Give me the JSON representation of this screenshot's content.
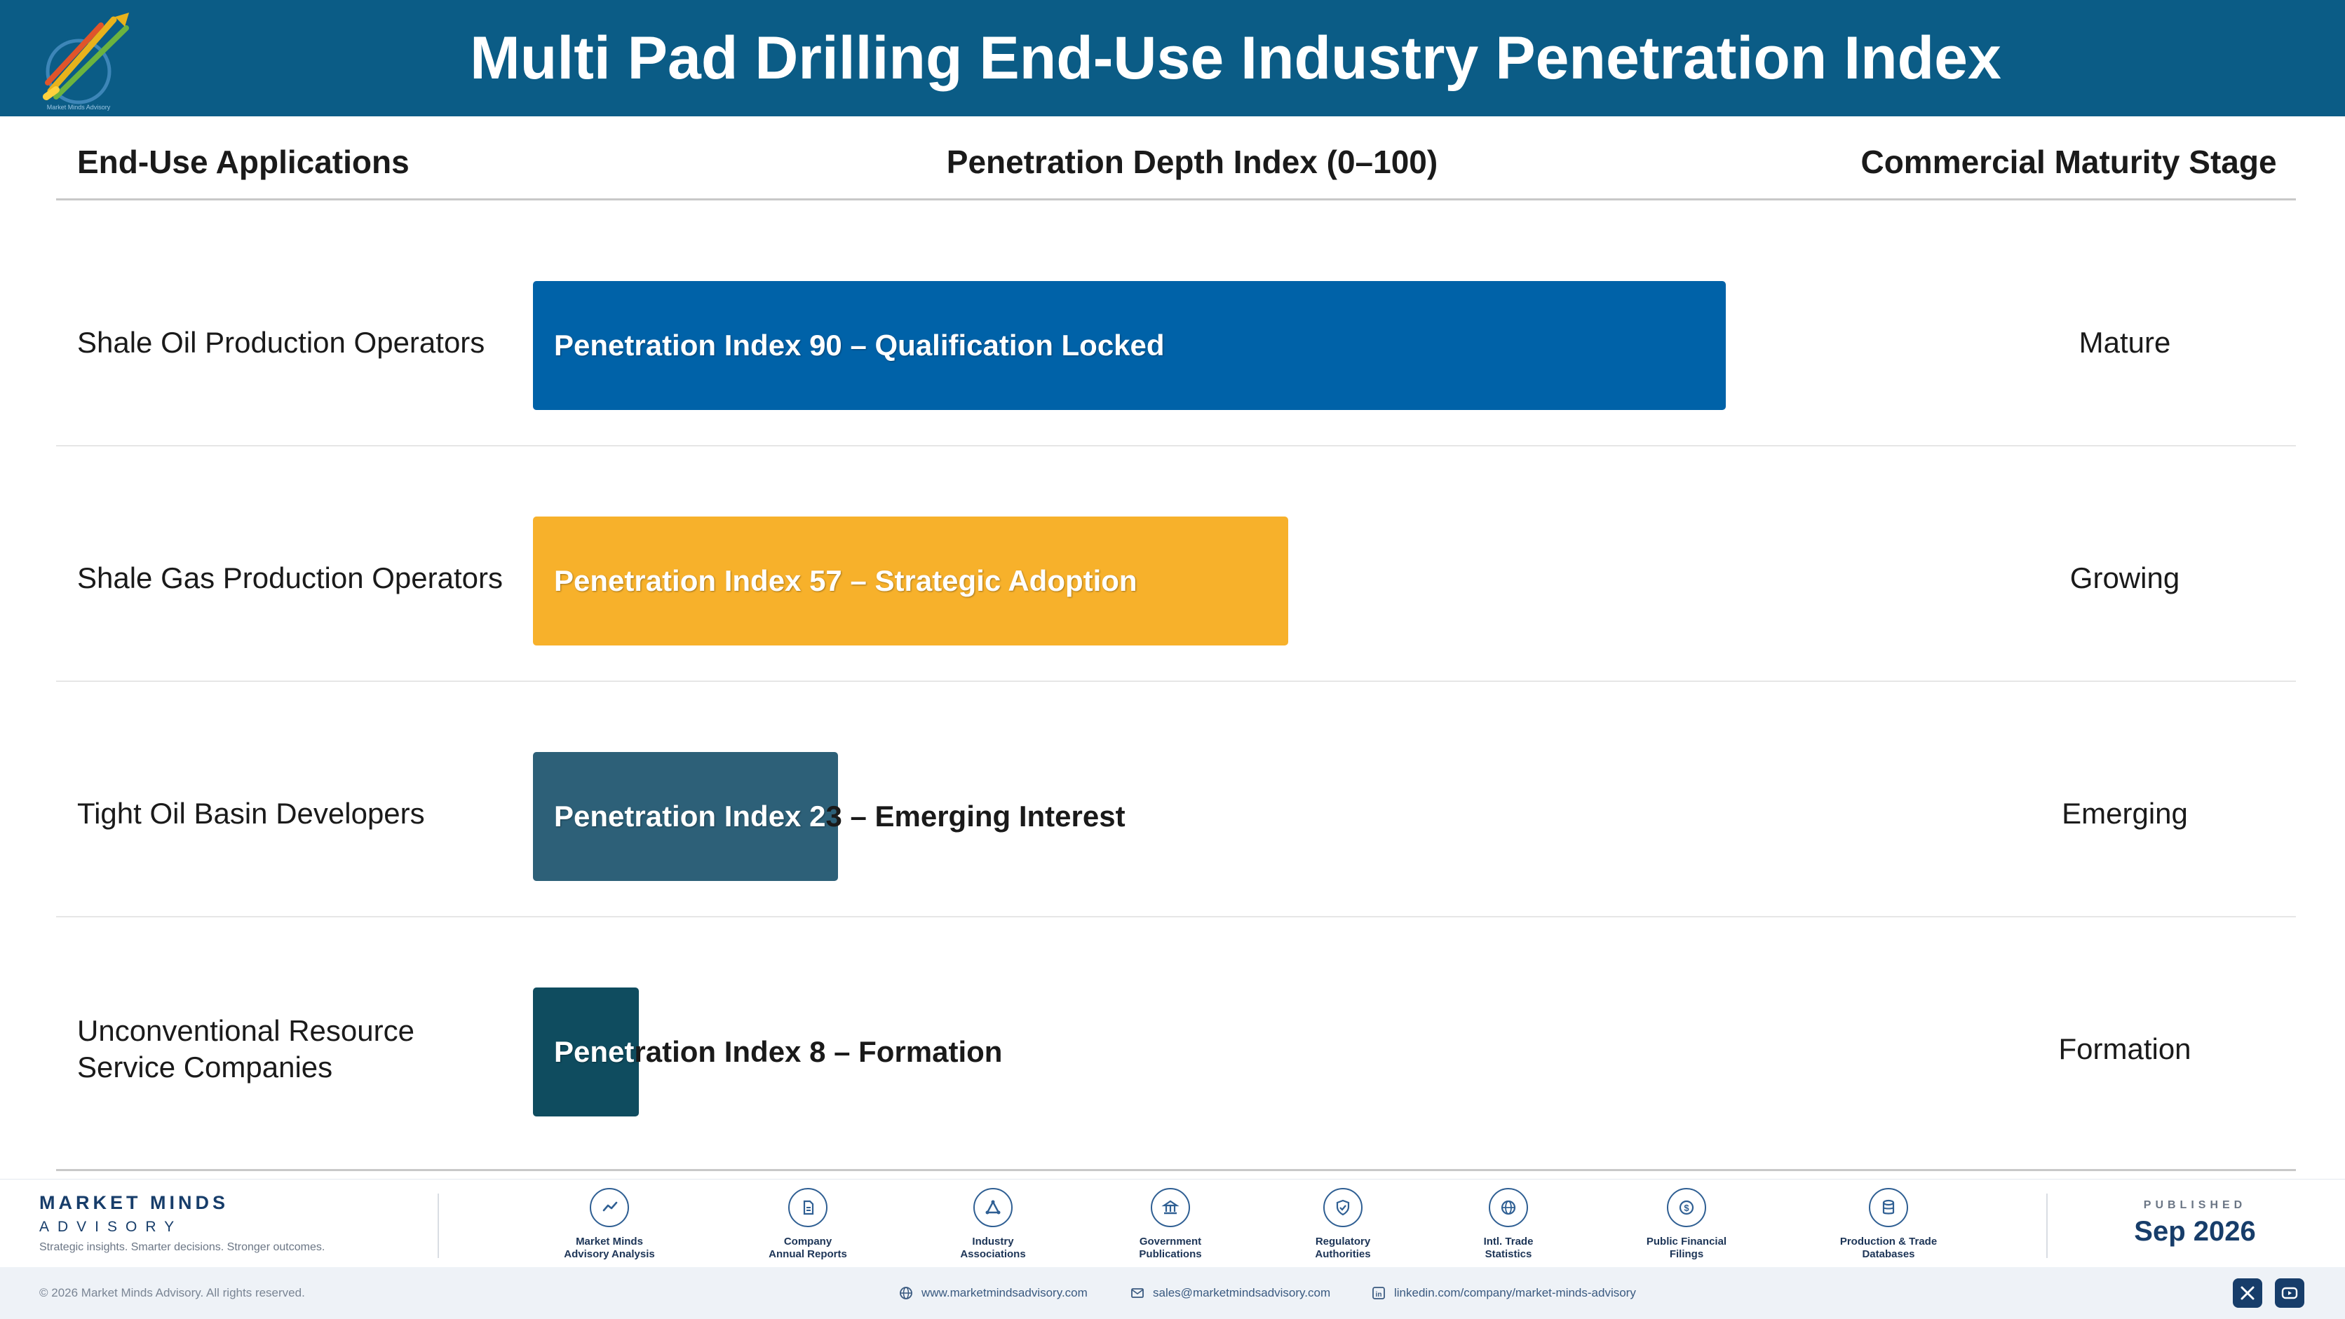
{
  "header": {
    "title": "Multi Pad Drilling End-Use Industry Penetration Index",
    "logo_text": "Market Minds Advisory"
  },
  "columns": {
    "applications": "End-Use Applications",
    "index": "Penetration Depth Index (0–100)",
    "stage": "Commercial Maturity Stage"
  },
  "colors": {
    "header_bg": "#0b5c86",
    "mature": "#0062a8",
    "growing": "#f7b12b",
    "emerging": "#2d6078",
    "formation": "#0f4c5f"
  },
  "chart_data": {
    "type": "bar",
    "orientation": "horizontal",
    "title": "Multi Pad Drilling End-Use Industry Penetration Index",
    "xlabel": "Penetration Depth Index (0–100)",
    "xlim": [
      0,
      100
    ],
    "categories": [
      "Shale Oil Production Operators",
      "Shale Gas Production Operators",
      "Tight Oil Basin Developers",
      "Unconventional Resource Service Companies"
    ],
    "values": [
      90,
      57,
      23,
      8
    ],
    "bar_labels": [
      "Penetration Index 90 – Qualification Locked",
      "Penetration Index 57 – Strategic Adoption",
      "Penetration Index 23 – Emerging Interest",
      "Penetration Index 8 – Formation"
    ],
    "stages": [
      "Mature",
      "Growing",
      "Emerging",
      "Formation"
    ],
    "bar_colors": [
      "#0062a8",
      "#f7b12b",
      "#2d6078",
      "#0f4c5f"
    ]
  },
  "footer": {
    "brand_name": "MARKET MINDS",
    "brand_sub": "ADVISORY",
    "tagline": "Strategic insights. Smarter decisions. Stronger outcomes.",
    "sources": [
      {
        "icon": "chart-line-icon",
        "line1": "Market Minds",
        "line2": "Advisory Analysis"
      },
      {
        "icon": "document-icon",
        "line1": "Company",
        "line2": "Annual Reports"
      },
      {
        "icon": "network-icon",
        "line1": "Industry",
        "line2": "Associations"
      },
      {
        "icon": "government-building-icon",
        "line1": "Government",
        "line2": "Publications"
      },
      {
        "icon": "shield-check-icon",
        "line1": "Regulatory",
        "line2": "Authorities"
      },
      {
        "icon": "globe-icon",
        "line1": "Intl. Trade",
        "line2": "Statistics"
      },
      {
        "icon": "dollar-coin-icon",
        "line1": "Public Financial",
        "line2": "Filings"
      },
      {
        "icon": "database-icon",
        "line1": "Production & Trade",
        "line2": "Databases"
      }
    ],
    "published_label": "PUBLISHED",
    "published_date": "Sep 2026",
    "copyright": "© 2026 Market Minds Advisory. All rights reserved.",
    "website": "www.marketmindsadvisory.com",
    "email": "sales@marketmindsadvisory.com",
    "linkedin": "linkedin.com/company/market-minds-advisory"
  }
}
